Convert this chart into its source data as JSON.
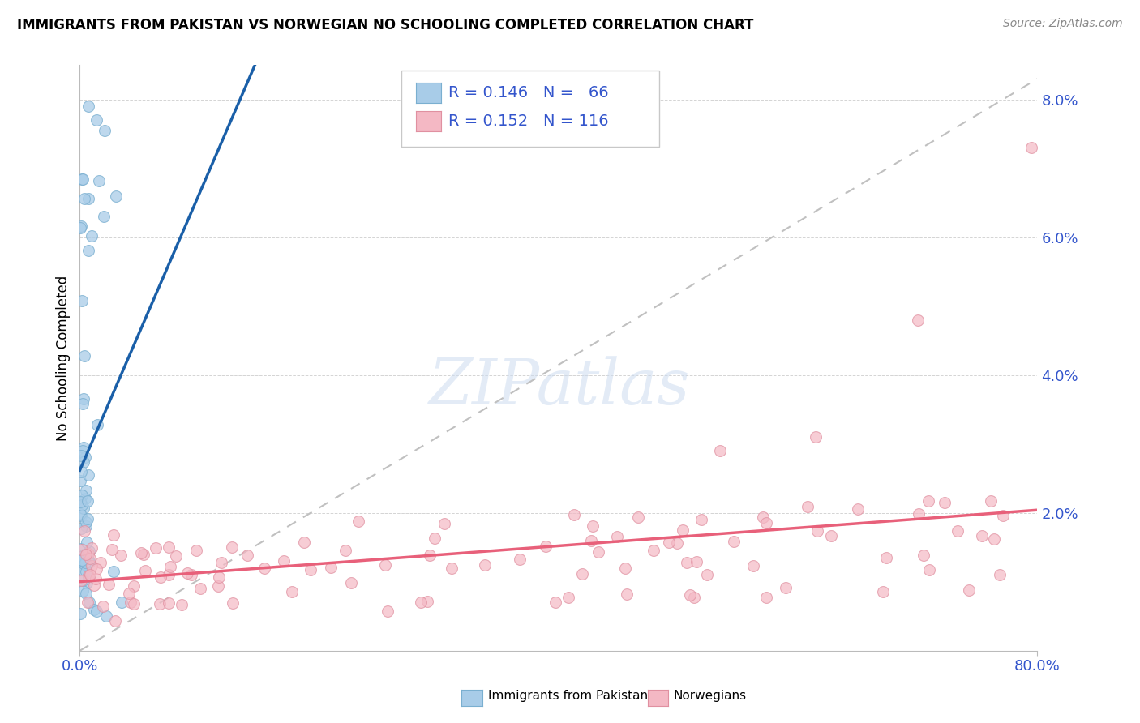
{
  "title": "IMMIGRANTS FROM PAKISTAN VS NORWEGIAN NO SCHOOLING COMPLETED CORRELATION CHART",
  "source": "Source: ZipAtlas.com",
  "ylabel": "No Schooling Completed",
  "xlim": [
    0,
    0.8
  ],
  "ylim": [
    0,
    0.085
  ],
  "ytick_vals": [
    0.0,
    0.02,
    0.04,
    0.06,
    0.08
  ],
  "ytick_labels": [
    "",
    "2.0%",
    "4.0%",
    "6.0%",
    "8.0%"
  ],
  "xtick_vals": [
    0.0,
    0.8
  ],
  "xtick_labels": [
    "0.0%",
    "80.0%"
  ],
  "legend_text1": "R = 0.146   N =   66",
  "legend_text2": "R = 0.152   N = 116",
  "legend_label1": "Immigrants from Pakistan",
  "legend_label2": "Norwegians",
  "blue_scatter_color": "#a8cce8",
  "blue_scatter_edge": "#7aafd0",
  "pink_scatter_color": "#f4b8c4",
  "pink_scatter_edge": "#e090a0",
  "blue_line_color": "#1a5fa8",
  "pink_line_color": "#e8607a",
  "dashed_color": "#c0c0c0",
  "tick_color": "#3355cc",
  "grid_color": "#d0d0d0",
  "watermark_color": "#ccdcf0",
  "title_fontsize": 12,
  "source_fontsize": 10,
  "tick_fontsize": 13,
  "legend_fontsize": 14
}
